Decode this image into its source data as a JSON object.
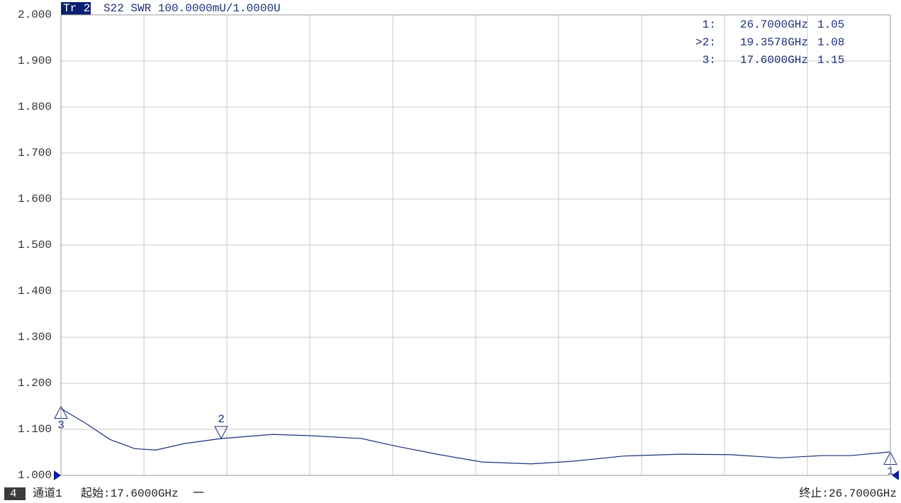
{
  "header": {
    "trace": "Tr 2",
    "info": "S22 SWR 100.0000mU/1.0000U"
  },
  "chart_data": {
    "type": "line",
    "x": [
      17.6,
      17.864,
      18.137,
      18.409,
      18.642,
      18.953,
      19.358,
      19.926,
      20.353,
      20.898,
      21.287,
      21.753,
      22.22,
      22.764,
      23.231,
      23.776,
      24.398,
      24.942,
      25.487,
      25.953,
      26.264,
      26.7
    ],
    "series": [
      {
        "color": "#1c2f7a",
        "values": [
          1.145,
          1.114,
          1.078,
          1.058,
          1.055,
          1.069,
          1.08,
          1.089,
          1.086,
          1.08,
          1.063,
          1.045,
          1.029,
          1.025,
          1.031,
          1.042,
          1.046,
          1.045,
          1.038,
          1.043,
          1.043,
          1.051
        ]
      }
    ],
    "xlim": [
      17.6,
      26.7
    ],
    "xticks": [
      17.6,
      18.51,
      19.42,
      20.33,
      21.24,
      22.15,
      23.06,
      23.97,
      24.88,
      25.79,
      26.7
    ],
    "ylim": [
      1,
      2
    ],
    "yticks": [
      {
        "value": 1,
        "label": "1.000"
      },
      {
        "value": 1.1,
        "label": "1.100"
      },
      {
        "value": 1.2,
        "label": "1.200"
      },
      {
        "value": 1.3,
        "label": "1.300"
      },
      {
        "value": 1.4,
        "label": "1.400"
      },
      {
        "value": 1.5,
        "label": "1.500"
      },
      {
        "value": 1.6,
        "label": "1.600"
      },
      {
        "value": 1.7,
        "label": "1.700"
      },
      {
        "value": 1.8,
        "label": "1.800"
      },
      {
        "value": 1.9,
        "label": "1.900"
      },
      {
        "value": 2,
        "label": "2.000"
      }
    ],
    "grid": true,
    "markers": [
      {
        "label": "1:",
        "tag": "1",
        "frequency": "26.7000GHz",
        "value": 1.05
      },
      {
        "label": ">2:",
        "tag": "2",
        "frequency": "19.3578GHz",
        "value": 1.08
      },
      {
        "label": "3:",
        "tag": "3",
        "frequency": "17.6000GHz",
        "value": 1.15
      }
    ]
  },
  "footer": {
    "channel_number": "4",
    "channel": "通道1",
    "start": "起始:17.6000GHz",
    "separator": "一",
    "stop": "终止:26.7000GHz"
  }
}
